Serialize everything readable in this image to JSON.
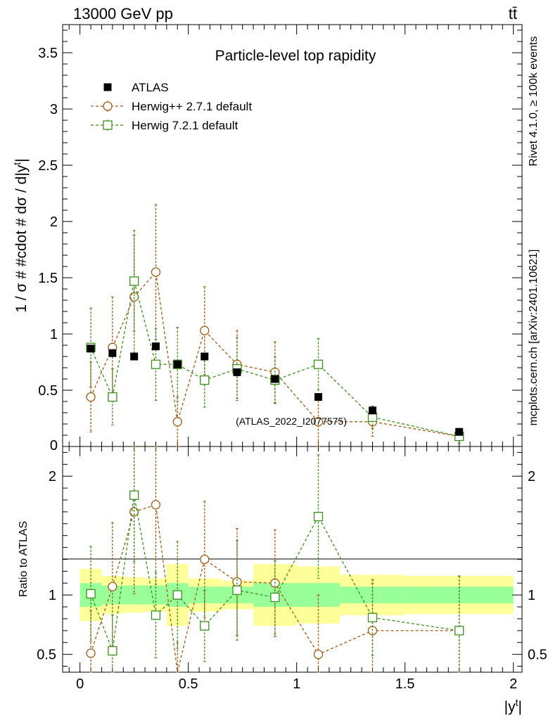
{
  "header": {
    "energy_label": "13000 GeV pp",
    "process_label": "tt̄",
    "rivet_label": "Rivet 4.1.0, ≥ 100k events",
    "mcplots_label": "mcplots.cern.ch [arXiv:2401.10621]"
  },
  "colors": {
    "atlas": "#000000",
    "herwigpp": "#a35a12",
    "herwig7": "#3c8f1c",
    "band_outer": "#ffff99",
    "band_inner": "#99ff99"
  },
  "chart_data": {
    "type": "scatter",
    "title": "Particle-level top rapidity",
    "watermark": "(ATLAS_2022_I2077575)",
    "xlabel": "|y^t|",
    "ylabel": "1 / σ # #cdot # dσ / d|y^t|",
    "ratio_ylabel": "Ratio to ATLAS",
    "xlim": [
      -0.08,
      2.04
    ],
    "ylim": [
      0,
      3.75
    ],
    "ratio_ylim": [
      0.35,
      2.25
    ],
    "x_ticks": [
      0,
      0.5,
      1,
      1.5,
      2
    ],
    "x_tick_labels": [
      "0",
      "0.5",
      "1",
      "1.5",
      "2"
    ],
    "y_ticks": [
      0.5,
      1,
      1.5,
      2,
      2.5,
      3,
      3.5
    ],
    "y_tick_labels": [
      "0.5",
      "1",
      "1.5",
      "2",
      "2.5",
      "3",
      "3.5"
    ],
    "y_zero_label": "0",
    "ratio_ticks": [
      0.5,
      1,
      2
    ],
    "ratio_tick_labels": [
      "0.5",
      "1",
      "2"
    ],
    "bins": [
      [
        0,
        0.1
      ],
      [
        0.1,
        0.2
      ],
      [
        0.2,
        0.3
      ],
      [
        0.3,
        0.4
      ],
      [
        0.4,
        0.5
      ],
      [
        0.5,
        0.65
      ],
      [
        0.65,
        0.8
      ],
      [
        0.8,
        1.0
      ],
      [
        1.0,
        1.2
      ],
      [
        1.2,
        1.5
      ],
      [
        1.5,
        2.0
      ]
    ],
    "x": [
      0.05,
      0.15,
      0.25,
      0.35,
      0.45,
      0.575,
      0.725,
      0.9,
      1.1,
      1.35,
      1.75
    ],
    "ratio_band_inner": [
      0.1,
      0.08,
      0.08,
      0.08,
      0.1,
      0.07,
      0.07,
      0.1,
      0.1,
      0.07,
      0.07
    ],
    "ratio_band_outer": [
      0.22,
      0.16,
      0.15,
      0.14,
      0.26,
      0.14,
      0.12,
      0.26,
      0.24,
      0.17,
      0.16
    ],
    "series": [
      {
        "name": "ATLAS",
        "style": "data",
        "values": [
          0.87,
          0.83,
          0.8,
          0.89,
          0.73,
          0.8,
          0.66,
          0.6,
          0.44,
          0.32,
          0.13
        ],
        "errors": [
          0.03,
          0.03,
          0.03,
          0.03,
          0.03,
          0.02,
          0.02,
          0.02,
          0.02,
          0.015,
          0.008
        ]
      },
      {
        "name": "Herwig++ 2.7.1 default",
        "style": "circle",
        "values": [
          0.44,
          0.88,
          1.33,
          1.55,
          0.22,
          1.03,
          0.73,
          0.66,
          0.22,
          0.22,
          0.09
        ],
        "errors": [
          0.31,
          0.45,
          0.55,
          0.6,
          0.22,
          0.39,
          0.3,
          0.27,
          0.22,
          0.13,
          0.06
        ],
        "ratio": [
          0.51,
          1.07,
          1.7,
          1.76,
          0.3,
          1.3,
          1.11,
          1.1,
          0.5,
          0.7,
          0.7
        ],
        "ratio_errors": [
          0.36,
          0.54,
          0.69,
          0.67,
          0.3,
          0.49,
          0.45,
          0.45,
          0.5,
          0.4,
          0.46
        ]
      },
      {
        "name": "Herwig 7.2.1 default",
        "style": "square",
        "values": [
          0.88,
          0.44,
          1.47,
          0.73,
          0.73,
          0.59,
          0.69,
          0.59,
          0.73,
          0.26,
          0.09
        ],
        "errors": [
          0.35,
          0.25,
          0.45,
          0.32,
          0.33,
          0.24,
          0.28,
          0.21,
          0.23,
          0.1,
          0.06
        ],
        "ratio": [
          1.01,
          0.53,
          1.84,
          0.83,
          1.0,
          0.74,
          1.04,
          0.98,
          1.66,
          0.81,
          0.7
        ],
        "ratio_errors": [
          0.4,
          0.3,
          0.56,
          0.36,
          0.45,
          0.3,
          0.42,
          0.31,
          0.52,
          0.32,
          0.46
        ]
      }
    ]
  }
}
